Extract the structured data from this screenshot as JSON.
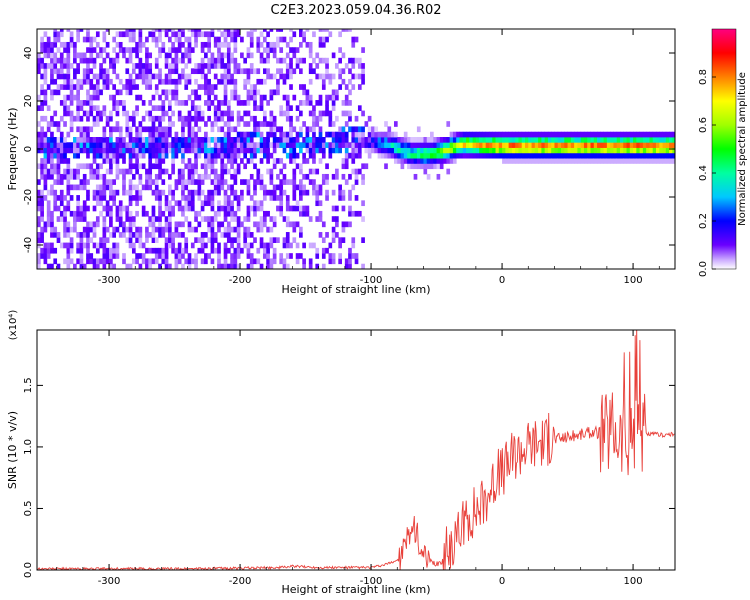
{
  "figure_title": "C2E3.2023.059.04.36.R02",
  "colorbar": {
    "label": "Normalized spectral amplitude",
    "ticks": [
      "0.0",
      "0.2",
      "0.4",
      "0.6",
      "0.8"
    ],
    "range": [
      0,
      1
    ]
  },
  "chart_data": [
    {
      "type": "heatmap",
      "title": "",
      "xlabel": "Height of straight line (km)",
      "ylabel": "Frequency (Hz)",
      "xlim": [
        -355,
        132
      ],
      "ylim": [
        -50,
        50
      ],
      "xticks": [
        -300,
        -200,
        -100,
        0,
        100
      ],
      "xtick_labels": [
        "-300",
        "-200",
        "-100",
        "0",
        "100"
      ],
      "yticks": [
        -40,
        -20,
        0,
        20,
        40
      ],
      "ytick_labels": [
        "-40",
        "-20",
        "0",
        "20",
        "40"
      ],
      "colormap": "rainbow (0 = white/violet, 1 = red)",
      "description_points": [
        {
          "x": -350,
          "level": 0.12
        },
        {
          "x": -110,
          "level": 0.05
        },
        {
          "x": -90,
          "level": 0.35
        },
        {
          "x": -70,
          "level": 0.45
        },
        {
          "x": -30,
          "level": 0.75
        },
        {
          "x": 0,
          "level": 0.9
        },
        {
          "x": 130,
          "level": 0.9
        }
      ],
      "ridge_frequency": [
        {
          "x": -210,
          "y": 0
        },
        {
          "x": -150,
          "y": 1
        },
        {
          "x": -110,
          "y": 3
        },
        {
          "x": -90,
          "y": 1
        },
        {
          "x": -70,
          "y": -3
        },
        {
          "x": -55,
          "y": -3
        },
        {
          "x": -30,
          "y": 1
        },
        {
          "x": 0,
          "y": 0
        },
        {
          "x": 130,
          "y": 0
        }
      ]
    },
    {
      "type": "line",
      "title": "",
      "xlabel": "Height of straight line (km)",
      "ylabel": "SNR (10 * v/v)",
      "yscale_label": "(x10⁴)",
      "xlim": [
        -355,
        132
      ],
      "ylim": [
        0,
        1.95
      ],
      "xticks": [
        -300,
        -200,
        -100,
        0,
        100
      ],
      "xtick_labels": [
        "-300",
        "-200",
        "-100",
        "0",
        "100"
      ],
      "yticks": [
        0,
        0.5,
        1.0,
        1.5
      ],
      "ytick_labels": [
        "0.0",
        "0.5",
        "1.0",
        "1.5"
      ],
      "color": "#e8403a",
      "series": [
        {
          "x": [
            -355,
            -300,
            -250,
            -200,
            -170,
            -160,
            -140,
            -120,
            -100,
            -90,
            -80,
            -75,
            -70,
            -65,
            -60,
            -55,
            -50,
            -45,
            -40,
            -35,
            -30,
            -25,
            -20,
            -15,
            -10,
            -5,
            0,
            10,
            20,
            30,
            40,
            50,
            60,
            70,
            80,
            85,
            90,
            95,
            100,
            103,
            106,
            110,
            120,
            132
          ],
          "y": [
            0.01,
            0.01,
            0.01,
            0.015,
            0.02,
            0.03,
            0.02,
            0.02,
            0.02,
            0.04,
            0.08,
            0.15,
            0.35,
            0.3,
            0.08,
            0.06,
            0.05,
            0.08,
            0.2,
            0.25,
            0.35,
            0.45,
            0.5,
            0.55,
            0.65,
            0.75,
            0.8,
            0.95,
            1.02,
            1.05,
            1.06,
            1.08,
            1.1,
            1.12,
            1.1,
            1.15,
            1.1,
            1.05,
            1.1,
            1.3,
            1.12,
            1.1,
            1.1,
            1.1
          ]
        }
      ]
    }
  ]
}
